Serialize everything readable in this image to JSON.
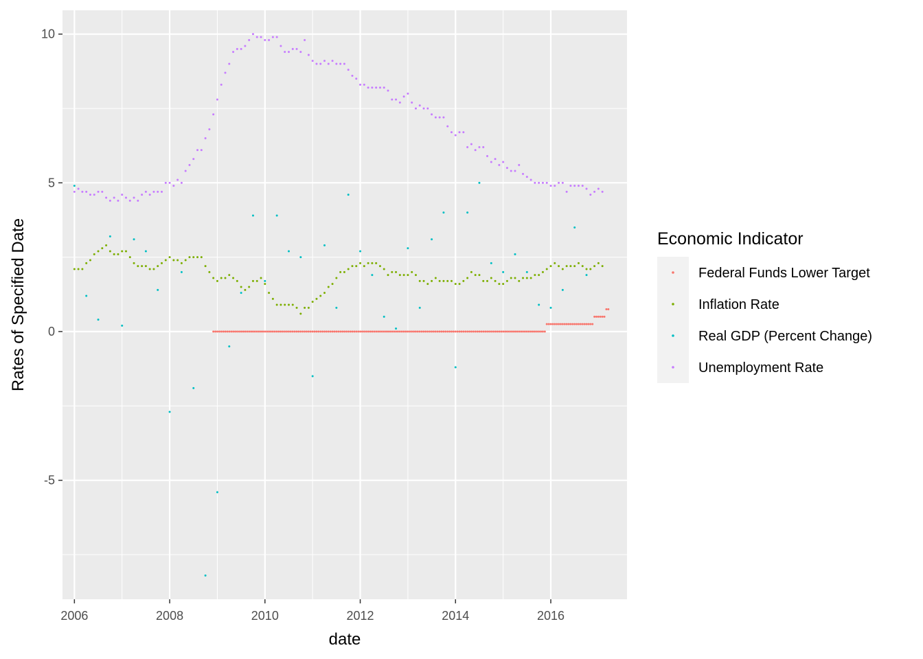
{
  "chart_data": {
    "type": "scatter",
    "title": "",
    "xlabel": "date",
    "ylabel": "Rates of Specified Date",
    "xlim": [
      2005.75,
      2017.6
    ],
    "ylim": [
      -9,
      10.8
    ],
    "x_ticks": [
      2006,
      2008,
      2010,
      2012,
      2014,
      2016
    ],
    "y_ticks": [
      -5,
      0,
      5,
      10
    ],
    "grid": true,
    "legend": {
      "title": "Economic Indicator",
      "position": "right"
    },
    "colors": {
      "panel": "#ebebeb",
      "grid": "#ffffff"
    },
    "series": [
      {
        "name": "Federal Funds Lower Target",
        "color": "#f8766d",
        "segments": [
          {
            "from": [
              2008,
              12
            ],
            "to": [
              2015,
              11
            ],
            "y": 0
          },
          {
            "from": [
              2015,
              12
            ],
            "to": [
              2016,
              11
            ],
            "y": 0.25
          },
          {
            "from": [
              2016,
              12
            ],
            "to": [
              2017,
              2
            ],
            "y": 0.5
          },
          {
            "from": [
              2017,
              3
            ],
            "to": [
              2017,
              3
            ],
            "y": 0.75
          }
        ]
      },
      {
        "name": "Inflation Rate",
        "color": "#7cae00",
        "start": [
          2006,
          1
        ],
        "values": [
          2.1,
          2.1,
          2.1,
          2.3,
          2.4,
          2.6,
          2.7,
          2.8,
          2.9,
          2.7,
          2.6,
          2.6,
          2.7,
          2.7,
          2.5,
          2.3,
          2.2,
          2.2,
          2.2,
          2.1,
          2.1,
          2.2,
          2.3,
          2.4,
          2.5,
          2.4,
          2.4,
          2.3,
          2.4,
          2.5,
          2.5,
          2.5,
          2.5,
          2.2,
          2.0,
          1.8,
          1.7,
          1.8,
          1.8,
          1.9,
          1.8,
          1.7,
          1.5,
          1.4,
          1.5,
          1.7,
          1.7,
          1.8,
          1.6,
          1.3,
          1.1,
          0.9,
          0.9,
          0.9,
          0.9,
          0.9,
          0.8,
          0.6,
          0.8,
          0.8,
          1.0,
          1.1,
          1.2,
          1.3,
          1.5,
          1.6,
          1.8,
          2.0,
          2.0,
          2.1,
          2.2,
          2.2,
          2.3,
          2.2,
          2.3,
          2.3,
          2.3,
          2.2,
          2.1,
          1.9,
          2.0,
          2.0,
          1.9,
          1.9,
          1.9,
          2.0,
          1.9,
          1.7,
          1.7,
          1.6,
          1.7,
          1.8,
          1.7,
          1.7,
          1.7,
          1.7,
          1.6,
          1.6,
          1.7,
          1.8,
          2.0,
          1.9,
          1.9,
          1.7,
          1.7,
          1.8,
          1.7,
          1.6,
          1.6,
          1.7,
          1.8,
          1.8,
          1.7,
          1.8,
          1.8,
          1.8,
          1.9,
          1.9,
          2.0,
          2.1,
          2.2,
          2.3,
          2.2,
          2.1,
          2.2,
          2.2,
          2.2,
          2.3,
          2.2,
          2.1,
          2.1,
          2.2,
          2.3,
          2.2
        ]
      },
      {
        "name": "Real GDP (Percent Change)",
        "color": "#00bfc4",
        "start": [
          2006,
          1
        ],
        "step_months": 3,
        "values": [
          4.9,
          1.2,
          0.4,
          3.2,
          0.2,
          3.1,
          2.7,
          1.4,
          -2.7,
          2.0,
          -1.9,
          -8.2,
          -5.4,
          -0.5,
          1.3,
          3.9,
          1.7,
          3.9,
          2.7,
          2.5,
          -1.5,
          2.9,
          0.8,
          4.6,
          2.7,
          1.9,
          0.5,
          0.1,
          2.8,
          0.8,
          3.1,
          4.0,
          -1.2,
          4.0,
          5.0,
          2.3,
          2.0,
          2.6,
          2.0,
          0.9,
          0.8,
          1.4,
          3.5,
          1.9
        ]
      },
      {
        "name": "Unemployment Rate",
        "color": "#c77cff",
        "start": [
          2006,
          1
        ],
        "values": [
          4.7,
          4.8,
          4.7,
          4.7,
          4.6,
          4.6,
          4.7,
          4.7,
          4.5,
          4.4,
          4.5,
          4.4,
          4.6,
          4.5,
          4.4,
          4.5,
          4.4,
          4.6,
          4.7,
          4.6,
          4.7,
          4.7,
          4.7,
          5.0,
          5.0,
          4.9,
          5.1,
          5.0,
          5.4,
          5.6,
          5.8,
          6.1,
          6.1,
          6.5,
          6.8,
          7.3,
          7.8,
          8.3,
          8.7,
          9.0,
          9.4,
          9.5,
          9.5,
          9.6,
          9.8,
          10.0,
          9.9,
          9.9,
          9.8,
          9.8,
          9.9,
          9.9,
          9.6,
          9.4,
          9.4,
          9.5,
          9.5,
          9.4,
          9.8,
          9.3,
          9.1,
          9.0,
          9.0,
          9.1,
          9.0,
          9.1,
          9.0,
          9.0,
          9.0,
          8.8,
          8.6,
          8.5,
          8.3,
          8.3,
          8.2,
          8.2,
          8.2,
          8.2,
          8.2,
          8.1,
          7.8,
          7.8,
          7.7,
          7.9,
          8.0,
          7.7,
          7.5,
          7.6,
          7.5,
          7.5,
          7.3,
          7.2,
          7.2,
          7.2,
          6.9,
          6.7,
          6.6,
          6.7,
          6.7,
          6.2,
          6.3,
          6.1,
          6.2,
          6.2,
          5.9,
          5.7,
          5.8,
          5.6,
          5.7,
          5.5,
          5.4,
          5.4,
          5.6,
          5.3,
          5.2,
          5.1,
          5.0,
          5.0,
          5.0,
          5.0,
          4.9,
          4.9,
          5.0,
          5.0,
          4.7,
          4.9,
          4.9,
          4.9,
          4.9,
          4.8,
          4.6,
          4.7,
          4.8,
          4.7
        ]
      }
    ]
  }
}
